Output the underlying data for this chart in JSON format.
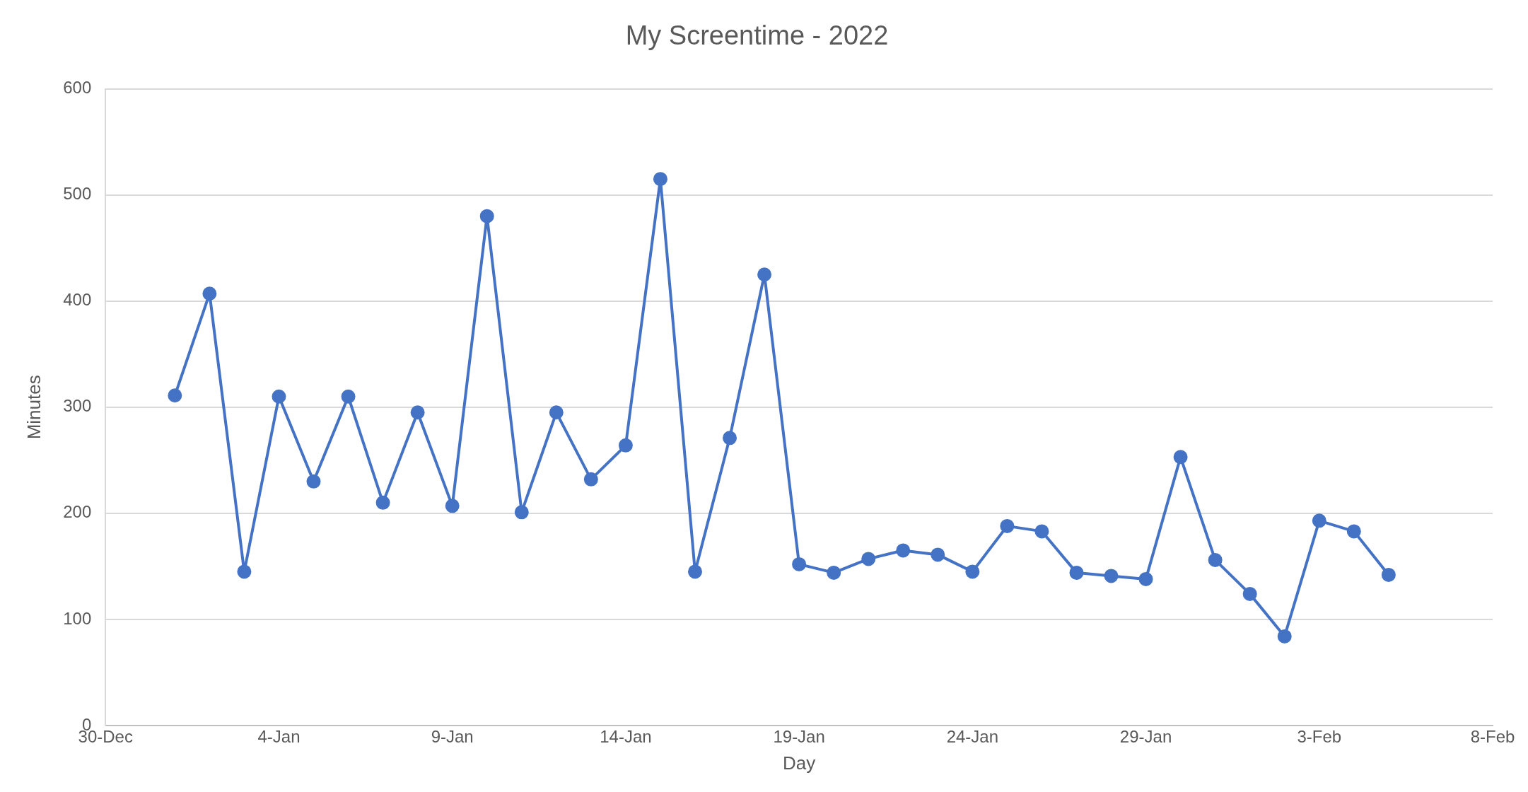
{
  "chart_data": {
    "type": "line",
    "title": "My Screentime - 2022",
    "xlabel": "Day",
    "ylabel": "Minutes",
    "x": [
      "2022-01-01",
      "2022-01-02",
      "2022-01-03",
      "2022-01-04",
      "2022-01-05",
      "2022-01-06",
      "2022-01-07",
      "2022-01-08",
      "2022-01-09",
      "2022-01-10",
      "2022-01-11",
      "2022-01-12",
      "2022-01-13",
      "2022-01-14",
      "2022-01-15",
      "2022-01-16",
      "2022-01-17",
      "2022-01-18",
      "2022-01-19",
      "2022-01-20",
      "2022-01-21",
      "2022-01-22",
      "2022-01-23",
      "2022-01-24",
      "2022-01-25",
      "2022-01-26",
      "2022-01-27",
      "2022-01-28",
      "2022-01-29",
      "2022-01-30",
      "2022-01-31",
      "2022-02-01",
      "2022-02-02",
      "2022-02-03",
      "2022-02-04",
      "2022-02-05"
    ],
    "series": [
      {
        "color": "#4472c4",
        "values": [
          311,
          407,
          145,
          310,
          230,
          310,
          210,
          295,
          207,
          480,
          201,
          295,
          232,
          264,
          515,
          145,
          271,
          425,
          152,
          144,
          157,
          165,
          161,
          145,
          188,
          183,
          144,
          141,
          138,
          253,
          156,
          124,
          84,
          193,
          183,
          142
        ]
      }
    ],
    "xlim": [
      "2021-12-30",
      "2022-02-08"
    ],
    "xticks": [
      {
        "value": "2021-12-30",
        "label": "30-Dec"
      },
      {
        "value": "2022-01-04",
        "label": "4-Jan"
      },
      {
        "value": "2022-01-09",
        "label": "9-Jan"
      },
      {
        "value": "2022-01-14",
        "label": "14-Jan"
      },
      {
        "value": "2022-01-19",
        "label": "19-Jan"
      },
      {
        "value": "2022-01-24",
        "label": "24-Jan"
      },
      {
        "value": "2022-01-29",
        "label": "29-Jan"
      },
      {
        "value": "2022-02-03",
        "label": "3-Feb"
      },
      {
        "value": "2022-02-08",
        "label": "8-Feb"
      }
    ],
    "ylim": [
      0,
      600
    ],
    "yticks": [
      0,
      100,
      200,
      300,
      400,
      500,
      600
    ],
    "grid": "y",
    "legend": false,
    "marker": "circle",
    "line_style": "solid"
  }
}
